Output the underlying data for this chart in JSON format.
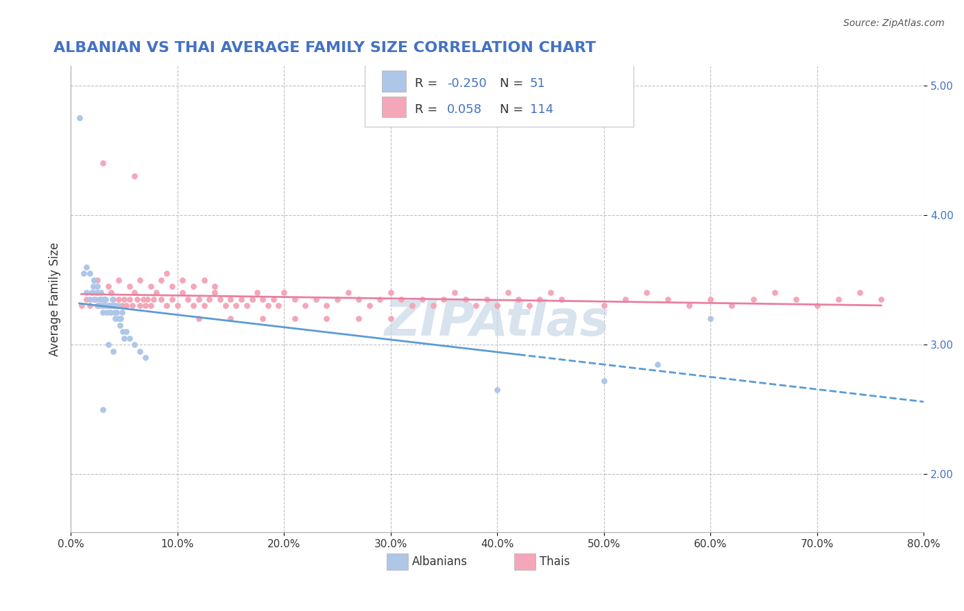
{
  "title": "ALBANIAN VS THAI AVERAGE FAMILY SIZE CORRELATION CHART",
  "source_text": "Source: ZipAtlas.com",
  "xlabel": "",
  "ylabel": "Average Family Size",
  "xlim": [
    0.0,
    0.8
  ],
  "ylim": [
    1.55,
    5.15
  ],
  "yticks": [
    2.0,
    3.0,
    4.0,
    5.0
  ],
  "xticks": [
    0.0,
    0.1,
    0.2,
    0.3,
    0.4,
    0.5,
    0.6,
    0.7,
    0.8
  ],
  "xtick_labels": [
    "0.0%",
    "10.0%",
    "20.0%",
    "30.0%",
    "40.0%",
    "50.0%",
    "60.0%",
    "70.0%",
    "80.0%"
  ],
  "albanian_R": -0.25,
  "albanian_N": 51,
  "thai_R": 0.058,
  "thai_N": 114,
  "albanian_color": "#aec6e8",
  "thai_color": "#f4a7b9",
  "albanian_line_color": "#5b9bd5",
  "thai_line_color": "#e97fa0",
  "legend_R_color": "#4472c4",
  "title_color": "#4472c4",
  "watermark_color": "#c8d8e8",
  "background_color": "#ffffff",
  "grid_color": "#c0c0c0",
  "albanian_x": [
    0.008,
    0.012,
    0.015,
    0.018,
    0.02,
    0.021,
    0.022,
    0.023,
    0.024,
    0.025,
    0.026,
    0.027,
    0.028,
    0.029,
    0.03,
    0.031,
    0.032,
    0.033,
    0.034,
    0.035,
    0.036,
    0.037,
    0.038,
    0.039,
    0.04,
    0.041,
    0.042,
    0.043,
    0.044,
    0.045,
    0.046,
    0.047,
    0.048,
    0.049,
    0.05,
    0.052,
    0.055,
    0.06,
    0.065,
    0.07,
    0.015,
    0.018,
    0.022,
    0.025,
    0.03,
    0.035,
    0.04,
    0.4,
    0.5,
    0.55,
    0.6
  ],
  "albanian_y": [
    4.75,
    3.55,
    3.4,
    3.35,
    3.4,
    3.45,
    3.5,
    3.35,
    3.4,
    3.45,
    3.3,
    3.35,
    3.4,
    3.3,
    3.25,
    3.35,
    3.3,
    3.35,
    3.25,
    3.3,
    3.3,
    3.25,
    3.3,
    3.35,
    3.3,
    3.25,
    3.2,
    3.25,
    3.3,
    3.2,
    3.15,
    3.2,
    3.25,
    3.1,
    3.05,
    3.1,
    3.05,
    3.0,
    2.95,
    2.9,
    3.6,
    3.55,
    3.5,
    3.4,
    2.5,
    3.0,
    2.95,
    2.65,
    2.72,
    2.85,
    3.2
  ],
  "thai_x": [
    0.01,
    0.015,
    0.018,
    0.02,
    0.022,
    0.025,
    0.028,
    0.03,
    0.032,
    0.035,
    0.038,
    0.04,
    0.042,
    0.045,
    0.048,
    0.05,
    0.052,
    0.055,
    0.058,
    0.06,
    0.062,
    0.065,
    0.068,
    0.07,
    0.072,
    0.075,
    0.078,
    0.08,
    0.085,
    0.09,
    0.095,
    0.1,
    0.105,
    0.11,
    0.115,
    0.12,
    0.125,
    0.13,
    0.135,
    0.14,
    0.145,
    0.15,
    0.155,
    0.16,
    0.165,
    0.17,
    0.175,
    0.18,
    0.185,
    0.19,
    0.195,
    0.2,
    0.21,
    0.22,
    0.23,
    0.24,
    0.25,
    0.26,
    0.27,
    0.28,
    0.29,
    0.3,
    0.31,
    0.32,
    0.33,
    0.34,
    0.35,
    0.36,
    0.37,
    0.38,
    0.39,
    0.4,
    0.41,
    0.42,
    0.43,
    0.44,
    0.45,
    0.46,
    0.5,
    0.52,
    0.54,
    0.56,
    0.58,
    0.6,
    0.62,
    0.64,
    0.66,
    0.68,
    0.7,
    0.72,
    0.74,
    0.76,
    0.025,
    0.035,
    0.045,
    0.055,
    0.065,
    0.075,
    0.085,
    0.095,
    0.105,
    0.115,
    0.125,
    0.135,
    0.03,
    0.06,
    0.09,
    0.12,
    0.15,
    0.18,
    0.21,
    0.24,
    0.27,
    0.3
  ],
  "thai_y": [
    3.3,
    3.35,
    3.3,
    3.4,
    3.35,
    3.3,
    3.35,
    3.3,
    3.35,
    3.3,
    3.4,
    3.35,
    3.3,
    3.35,
    3.3,
    3.35,
    3.3,
    3.35,
    3.3,
    3.4,
    3.35,
    3.3,
    3.35,
    3.3,
    3.35,
    3.3,
    3.35,
    3.4,
    3.35,
    3.3,
    3.35,
    3.3,
    3.4,
    3.35,
    3.3,
    3.35,
    3.3,
    3.35,
    3.4,
    3.35,
    3.3,
    3.35,
    3.3,
    3.35,
    3.3,
    3.35,
    3.4,
    3.35,
    3.3,
    3.35,
    3.3,
    3.4,
    3.35,
    3.3,
    3.35,
    3.3,
    3.35,
    3.4,
    3.35,
    3.3,
    3.35,
    3.4,
    3.35,
    3.3,
    3.35,
    3.3,
    3.35,
    3.4,
    3.35,
    3.3,
    3.35,
    3.3,
    3.4,
    3.35,
    3.3,
    3.35,
    3.4,
    3.35,
    3.3,
    3.35,
    3.4,
    3.35,
    3.3,
    3.35,
    3.3,
    3.35,
    3.4,
    3.35,
    3.3,
    3.35,
    3.4,
    3.35,
    3.5,
    3.45,
    3.5,
    3.45,
    3.5,
    3.45,
    3.5,
    3.45,
    3.5,
    3.45,
    3.5,
    3.45,
    4.4,
    4.3,
    3.55,
    3.2,
    3.2,
    3.2,
    3.2,
    3.2,
    3.2,
    3.2
  ]
}
